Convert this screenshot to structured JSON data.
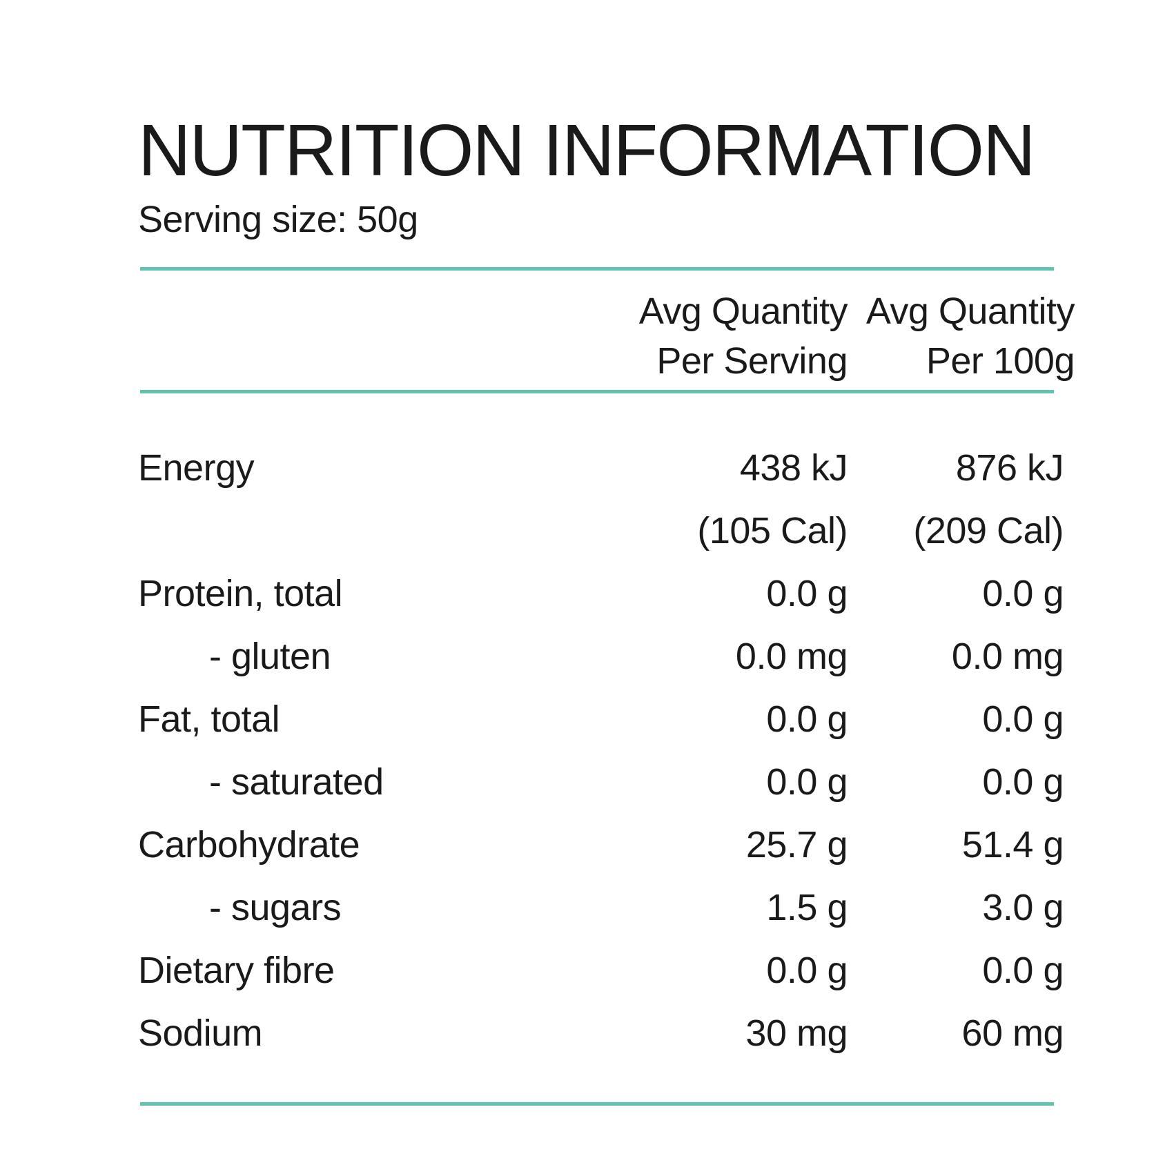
{
  "colors": {
    "accent": "#5fc3ad"
  },
  "title": "NUTRITION INFORMATION",
  "serving_size": "Serving size: 50g",
  "columns": {
    "per_serving": {
      "line1": "Avg Quantity",
      "line2": "Per Serving"
    },
    "per_100g": {
      "line1": "Avg Quantity",
      "line2": "Per 100g"
    }
  },
  "rows": [
    {
      "label": "Energy",
      "per_serving": "438 kJ",
      "per_100g": "876 kJ"
    },
    {
      "label": "",
      "per_serving": "(105 Cal)",
      "per_100g": "(209 Cal)"
    },
    {
      "label": "Protein, total",
      "per_serving": "0.0 g",
      "per_100g": "0.0 g"
    },
    {
      "label": "- gluten",
      "per_serving": "0.0 mg",
      "per_100g": "0.0 mg"
    },
    {
      "label": "Fat, total",
      "per_serving": "0.0 g",
      "per_100g": "0.0 g"
    },
    {
      "label": "- saturated",
      "per_serving": "0.0 g",
      "per_100g": "0.0 g"
    },
    {
      "label": "Carbohydrate",
      "per_serving": "25.7 g",
      "per_100g": "51.4 g"
    },
    {
      "label": "- sugars",
      "per_serving": "1.5 g",
      "per_100g": "3.0 g"
    },
    {
      "label": "Dietary fibre",
      "per_serving": "0.0 g",
      "per_100g": "0.0 g"
    },
    {
      "label": "Sodium",
      "per_serving": "30 mg",
      "per_100g": "60 mg"
    }
  ]
}
